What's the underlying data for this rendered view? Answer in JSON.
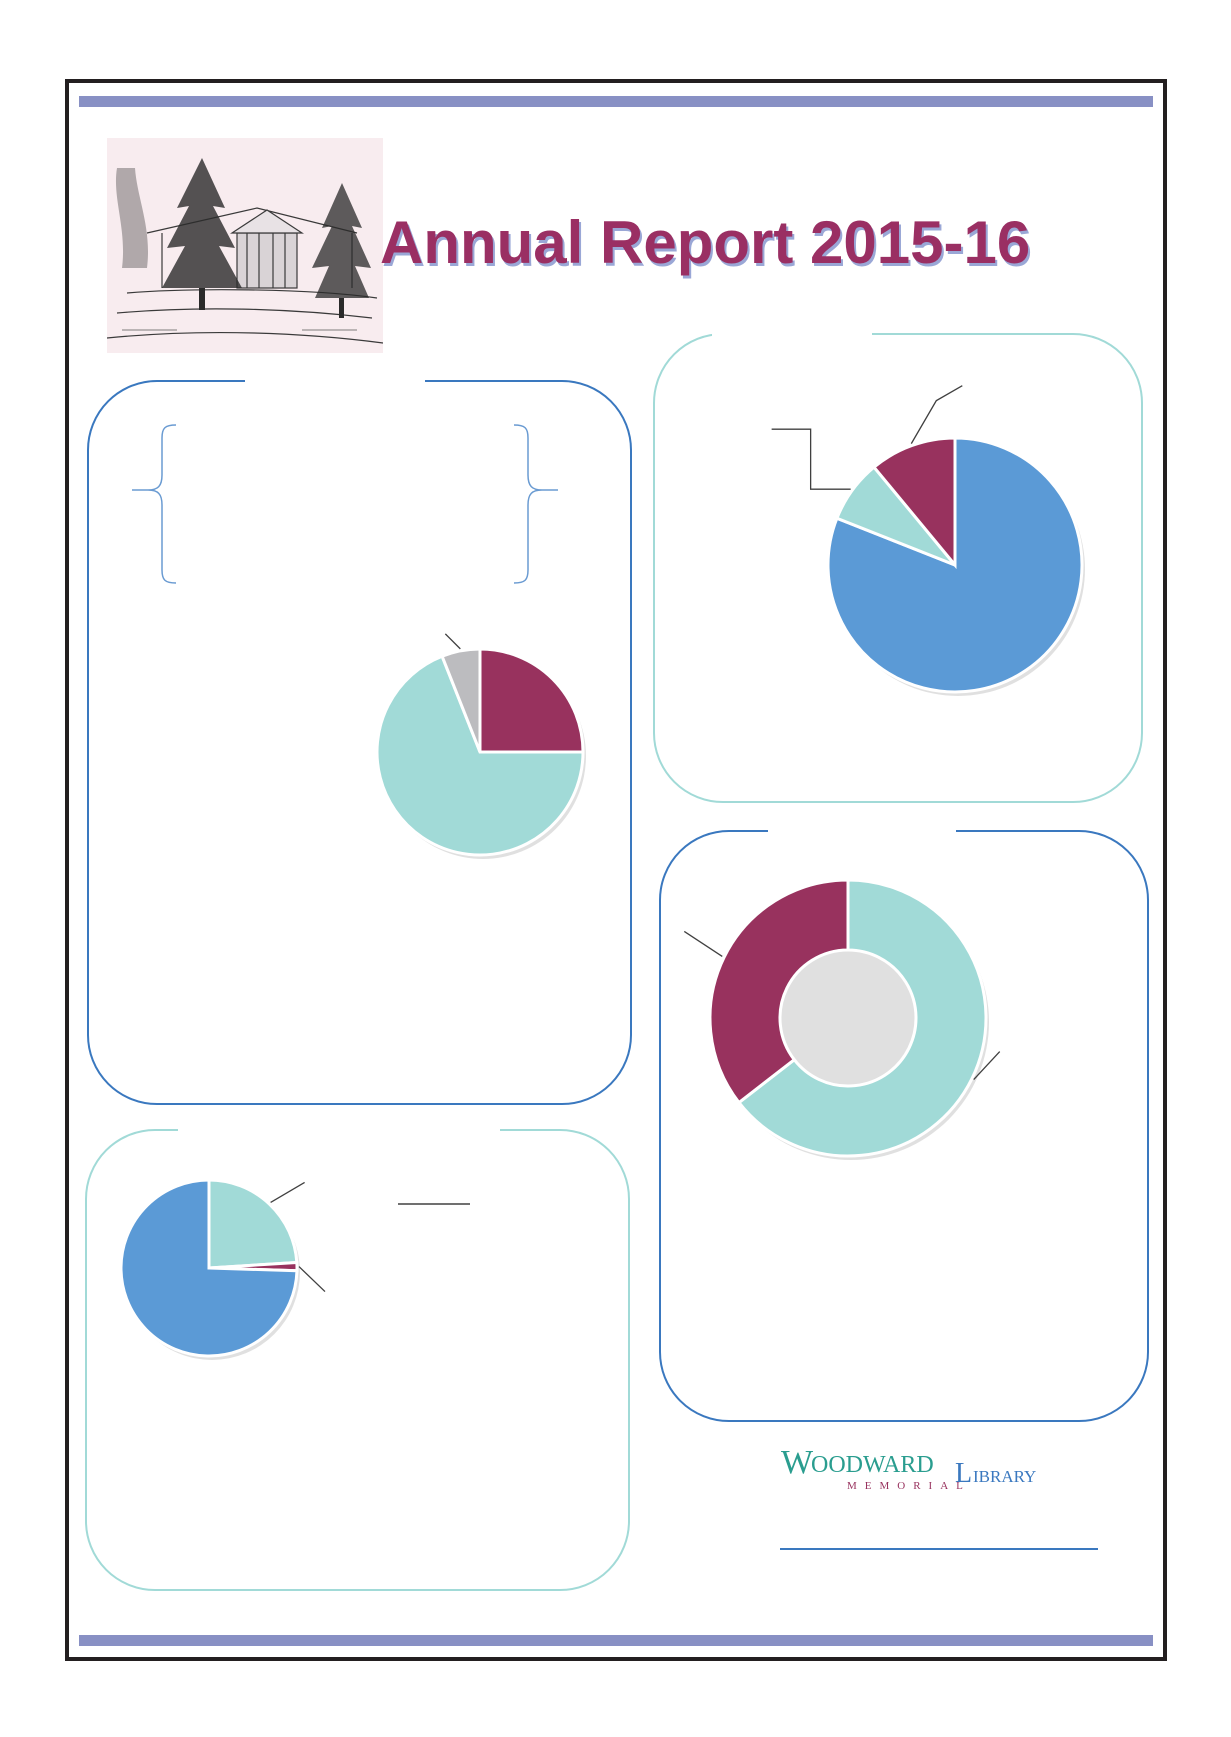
{
  "document": {
    "title": "Annual Report 2015-16",
    "colors": {
      "plum": "#98325e",
      "teal": "#a1dad7",
      "blue": "#5b9ad6",
      "grey": "#bcbcbf",
      "frame_bar": "#8890c4"
    }
  },
  "logo": {
    "word1_initial": "W",
    "word1_rest": "OODWARD",
    "word2": "MEMORIAL",
    "word3_initial": "L",
    "word3_rest": "IBRARY"
  },
  "chart_data": [
    {
      "type": "pie",
      "panel": "top-left",
      "slices": [
        {
          "value": 25,
          "color": "#98325e"
        },
        {
          "value": 69,
          "color": "#a1dad7"
        },
        {
          "value": 6,
          "color": "#bcbcbf"
        }
      ]
    },
    {
      "type": "pie",
      "panel": "top-right",
      "slices": [
        {
          "value": 81,
          "color": "#5b9ad6"
        },
        {
          "value": 8,
          "color": "#a1dad7"
        },
        {
          "value": 11,
          "color": "#98325e"
        }
      ]
    },
    {
      "type": "pie",
      "panel": "bottom-left",
      "slices": [
        {
          "value": 24,
          "color": "#a1dad7"
        },
        {
          "value": 1.5,
          "color": "#98325e"
        },
        {
          "value": 74.5,
          "color": "#5b9ad6"
        }
      ]
    },
    {
      "type": "donut",
      "panel": "middle-right",
      "slices": [
        {
          "value": 64.5,
          "color": "#a1dad7"
        },
        {
          "value": 35.5,
          "color": "#98325e"
        }
      ]
    }
  ]
}
